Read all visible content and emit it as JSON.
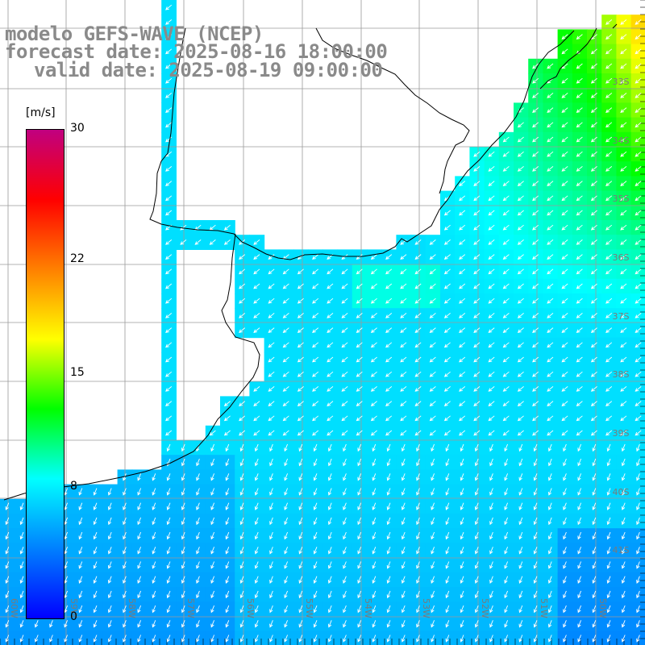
{
  "title": {
    "line1": "modelo GEFS-WAVE (NCEP)",
    "line2": "forecast date: 2025-08-16 18:00:00",
    "line3": "valid date: 2025-08-19 09:00:00"
  },
  "colorbar": {
    "unit": "[m/s]",
    "min": 0,
    "max": 30,
    "ticks": [
      "30",
      "22",
      "15",
      "8",
      "0"
    ],
    "tick_values": [
      30,
      22,
      15,
      8,
      0
    ],
    "stops": [
      "#0000ff",
      "#0080ff",
      "#00ffff",
      "#00ff00",
      "#ffff00",
      "#ff8000",
      "#ff0000",
      "#c00080"
    ]
  },
  "map": {
    "lon_labels": [
      "60W",
      "59W",
      "58W",
      "57W",
      "56W",
      "55W",
      "54W",
      "53W",
      "52W",
      "51W",
      "50W"
    ],
    "lat_labels": [
      "33S",
      "34S",
      "35S",
      "36S",
      "37S",
      "38S",
      "39S",
      "40S",
      "41S"
    ],
    "wind_direction": "toward southwest",
    "land_color": "#ffffff",
    "coast_color": "#000000",
    "grid_color": "#9a9a9a"
  }
}
